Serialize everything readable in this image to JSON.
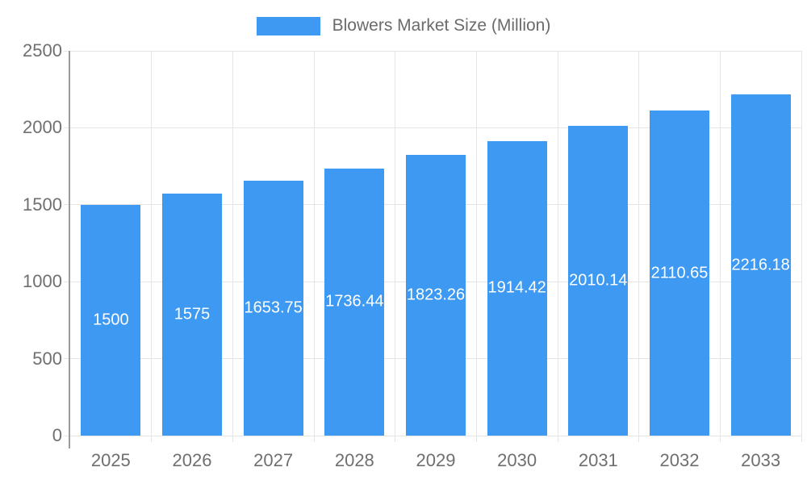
{
  "legend": {
    "label": "Blowers Market Size (Million)"
  },
  "chart_data": {
    "type": "bar",
    "title": "Blowers Market Size (Million)",
    "categories": [
      "2025",
      "2026",
      "2027",
      "2028",
      "2029",
      "2030",
      "2031",
      "2032",
      "2033"
    ],
    "values": [
      1500,
      1575,
      1653.75,
      1736.44,
      1823.26,
      1914.42,
      2010.14,
      2110.65,
      2216.18
    ],
    "bar_labels": [
      "1500",
      "1575",
      "1653.75",
      "1736.44",
      "1823.26",
      "1914.42",
      "2010.14",
      "2110.65",
      "2216.18"
    ],
    "y_ticks": [
      0,
      500,
      1000,
      1500,
      2000,
      2500
    ],
    "ylim": [
      0,
      2500
    ],
    "xlabel": "",
    "ylabel": "",
    "grid": true,
    "legend_position": "top",
    "colors": {
      "bar": "#3d99f2",
      "grid": "#e5e5e5",
      "axis_line": "#9b9b9b",
      "tick_text": "#6f6f6f",
      "legend_text": "#6b6b6b",
      "bar_label_text": "#ffffff"
    }
  }
}
